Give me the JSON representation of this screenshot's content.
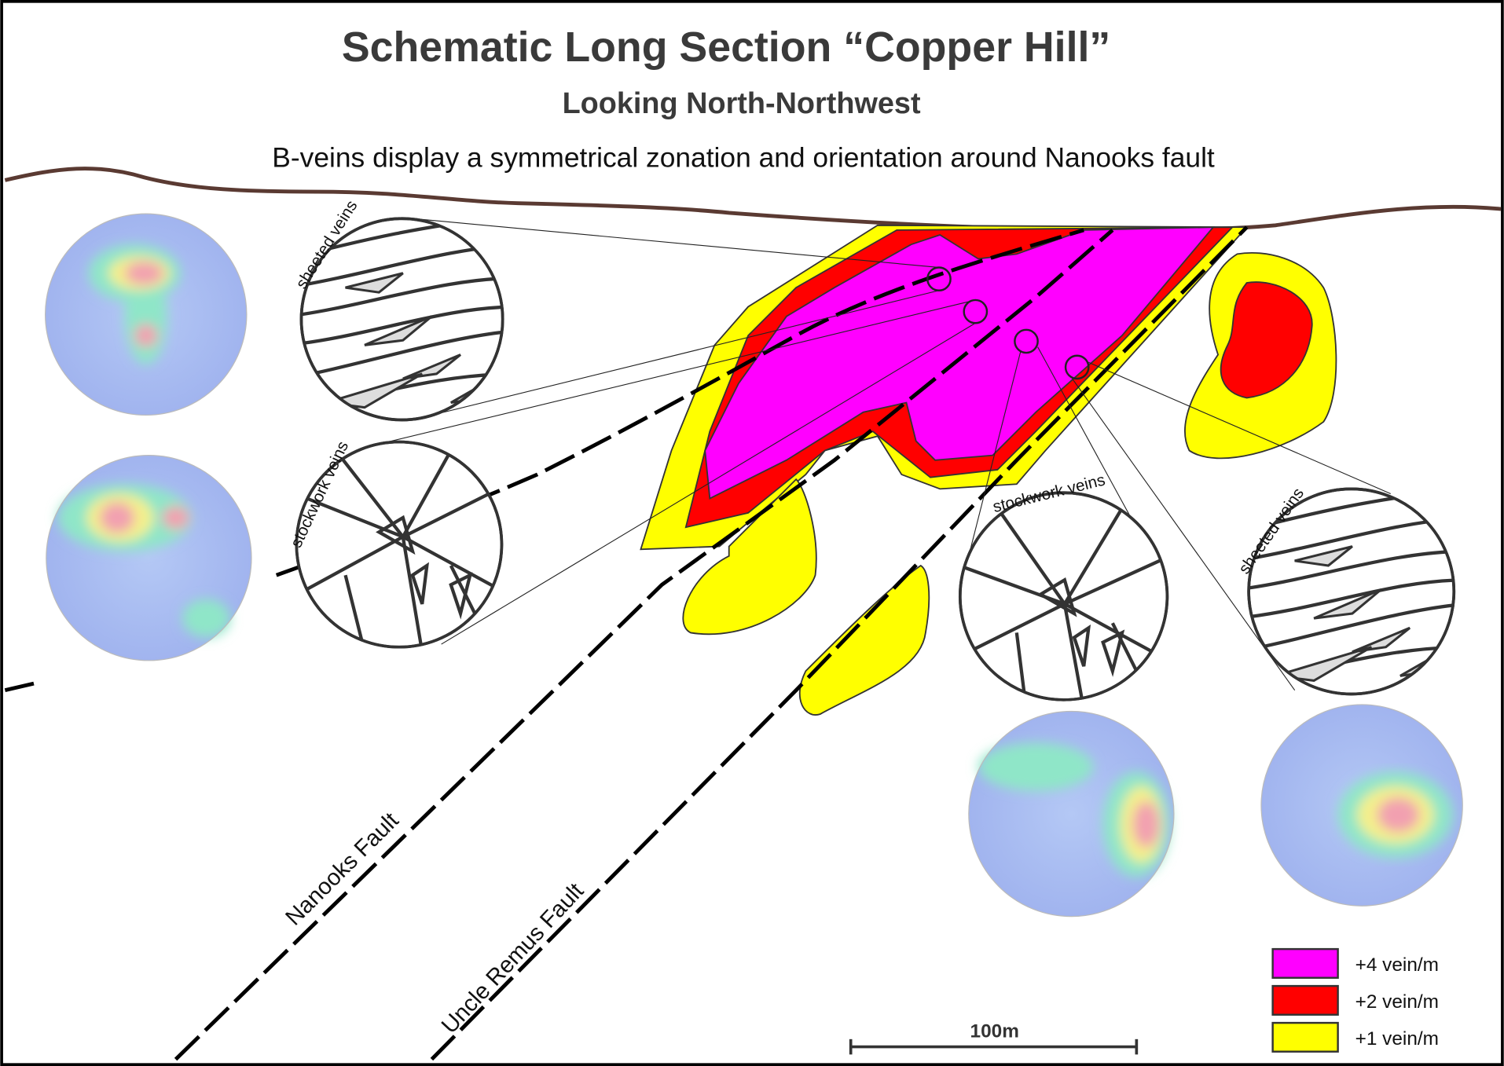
{
  "header": {
    "title": "Schematic Long Section “Copper Hill”",
    "subtitle": "Looking North-Northwest",
    "caption": "B-veins display a symmetrical zonation and orientation around Nanooks fault"
  },
  "insets": [
    {
      "label": "sheeted veins"
    },
    {
      "label": "stockwork veins"
    },
    {
      "label": "stockwork veins"
    },
    {
      "label": "sheeted veins"
    }
  ],
  "faults": [
    {
      "label": "Nanooks Fault"
    },
    {
      "label": "Uncle Remus Fault"
    }
  ],
  "legend": [
    {
      "label": "+4 vein/m",
      "color": "#ff00ff"
    },
    {
      "label": "+2 vein/m",
      "color": "#ff0000"
    },
    {
      "label": "+1 vein/m",
      "color": "#ffff00"
    }
  ],
  "scale_bar": {
    "label": "100m"
  }
}
